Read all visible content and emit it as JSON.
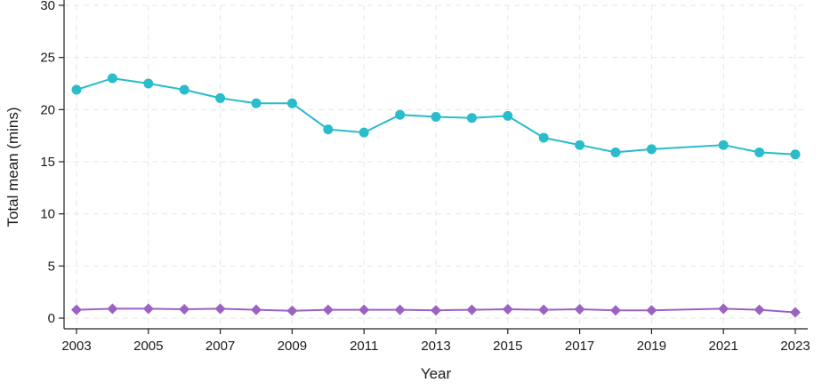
{
  "chart_data": {
    "type": "line",
    "title": "",
    "xlabel": "Year",
    "ylabel": "Total mean (mins)",
    "xlim": [
      2003,
      2023
    ],
    "ylim": [
      0,
      30
    ],
    "x_ticks": [
      "2003",
      "2005",
      "2007",
      "2009",
      "2011",
      "2013",
      "2015",
      "2017",
      "2019",
      "2021",
      "2023"
    ],
    "y_ticks": [
      "0",
      "5",
      "10",
      "15",
      "20",
      "25",
      "30"
    ],
    "grid": true,
    "series": [
      {
        "name": "series-1",
        "color": "#29bccb",
        "marker": "circle",
        "x": [
          2003,
          2004,
          2005,
          2006,
          2007,
          2008,
          2009,
          2010,
          2011,
          2012,
          2013,
          2014,
          2015,
          2016,
          2017,
          2018,
          2019,
          2021,
          2022,
          2023
        ],
        "values": [
          21.9,
          23.0,
          22.5,
          21.9,
          21.1,
          20.6,
          20.6,
          18.1,
          17.8,
          19.5,
          19.3,
          19.2,
          19.4,
          17.3,
          16.6,
          15.9,
          16.2,
          16.6,
          15.9,
          15.7
        ]
      },
      {
        "name": "series-2",
        "color": "#9b62c4",
        "marker": "diamond",
        "x": [
          2003,
          2004,
          2005,
          2006,
          2007,
          2008,
          2009,
          2010,
          2011,
          2012,
          2013,
          2014,
          2015,
          2016,
          2017,
          2018,
          2019,
          2021,
          2022,
          2023
        ],
        "values": [
          0.8,
          0.9,
          0.9,
          0.85,
          0.9,
          0.8,
          0.7,
          0.8,
          0.8,
          0.8,
          0.75,
          0.8,
          0.85,
          0.8,
          0.85,
          0.75,
          0.75,
          0.9,
          0.8,
          0.55
        ]
      }
    ]
  }
}
